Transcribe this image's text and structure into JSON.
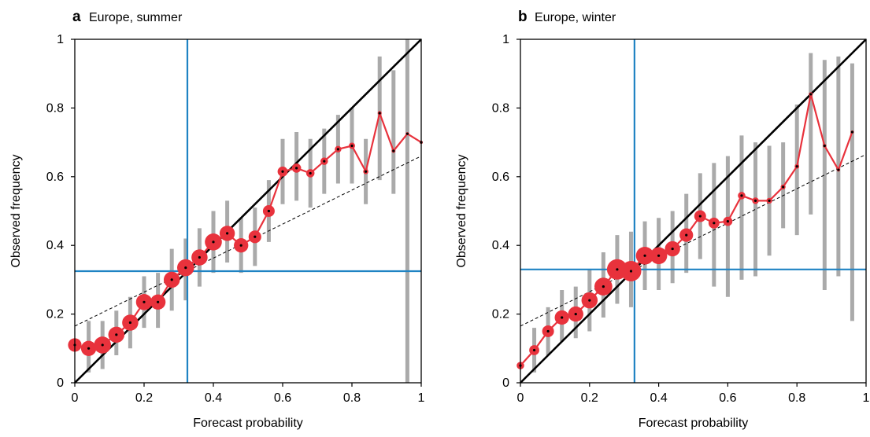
{
  "colors": {
    "reliability": "#e8323c",
    "dot": "#000000",
    "whisker": "#aaaaaa",
    "climatology": "#1f83c3",
    "diagonal": "#000000",
    "regression": "#000000"
  },
  "chart_data": [
    {
      "type": "scatter",
      "panel_letter": "a",
      "title": "Europe, summer",
      "xlabel": "Forecast probability",
      "ylabel": "Observed frequency",
      "xlim": [
        0,
        1
      ],
      "ylim": [
        0,
        1
      ],
      "xticks": [
        "0",
        "0.2",
        "0.4",
        "0.6",
        "0.8",
        "1"
      ],
      "yticks": [
        "0",
        "0.2",
        "0.4",
        "0.6",
        "0.8",
        "1"
      ],
      "climatology": 0.325,
      "regression_line": {
        "x": [
          0,
          1
        ],
        "y": [
          0.165,
          0.66
        ]
      },
      "points": [
        {
          "x": 0.0,
          "y": 0.11,
          "lo": null,
          "hi": null,
          "size": 0.6
        },
        {
          "x": 0.04,
          "y": 0.1,
          "lo": 0.03,
          "hi": 0.18,
          "size": 0.7
        },
        {
          "x": 0.08,
          "y": 0.11,
          "lo": 0.04,
          "hi": 0.18,
          "size": 0.8
        },
        {
          "x": 0.12,
          "y": 0.14,
          "lo": 0.08,
          "hi": 0.21,
          "size": 0.75
        },
        {
          "x": 0.16,
          "y": 0.175,
          "lo": 0.1,
          "hi": 0.25,
          "size": 0.75
        },
        {
          "x": 0.2,
          "y": 0.235,
          "lo": 0.16,
          "hi": 0.31,
          "size": 0.75
        },
        {
          "x": 0.24,
          "y": 0.235,
          "lo": 0.16,
          "hi": 0.32,
          "size": 0.7
        },
        {
          "x": 0.28,
          "y": 0.3,
          "lo": 0.21,
          "hi": 0.39,
          "size": 0.75
        },
        {
          "x": 0.32,
          "y": 0.335,
          "lo": 0.24,
          "hi": 0.42,
          "size": 0.8
        },
        {
          "x": 0.36,
          "y": 0.365,
          "lo": 0.28,
          "hi": 0.45,
          "size": 0.75
        },
        {
          "x": 0.4,
          "y": 0.41,
          "lo": 0.32,
          "hi": 0.5,
          "size": 0.8
        },
        {
          "x": 0.44,
          "y": 0.435,
          "lo": 0.35,
          "hi": 0.53,
          "size": 0.7
        },
        {
          "x": 0.48,
          "y": 0.4,
          "lo": 0.32,
          "hi": 0.48,
          "size": 0.65
        },
        {
          "x": 0.52,
          "y": 0.425,
          "lo": 0.34,
          "hi": 0.51,
          "size": 0.55
        },
        {
          "x": 0.56,
          "y": 0.5,
          "lo": 0.41,
          "hi": 0.59,
          "size": 0.5
        },
        {
          "x": 0.6,
          "y": 0.615,
          "lo": 0.52,
          "hi": 0.71,
          "size": 0.4
        },
        {
          "x": 0.64,
          "y": 0.625,
          "lo": 0.53,
          "hi": 0.73,
          "size": 0.35
        },
        {
          "x": 0.68,
          "y": 0.61,
          "lo": 0.51,
          "hi": 0.71,
          "size": 0.3
        },
        {
          "x": 0.72,
          "y": 0.645,
          "lo": 0.55,
          "hi": 0.74,
          "size": 0.25
        },
        {
          "x": 0.76,
          "y": 0.68,
          "lo": 0.58,
          "hi": 0.78,
          "size": 0.2
        },
        {
          "x": 0.8,
          "y": 0.69,
          "lo": 0.58,
          "hi": 0.8,
          "size": 0.18
        },
        {
          "x": 0.84,
          "y": 0.615,
          "lo": 0.52,
          "hi": 0.71,
          "size": 0.12
        },
        {
          "x": 0.88,
          "y": 0.785,
          "lo": 0.59,
          "hi": 0.95,
          "size": 0.05
        },
        {
          "x": 0.92,
          "y": 0.675,
          "lo": 0.55,
          "hi": 0.91,
          "size": 0.04
        },
        {
          "x": 0.96,
          "y": 0.725,
          "lo": 0.0,
          "hi": 1.0,
          "size": 0.0
        },
        {
          "x": 1.0,
          "y": 0.7,
          "lo": null,
          "hi": null,
          "size": 0.0
        }
      ]
    },
    {
      "type": "scatter",
      "panel_letter": "b",
      "title": "Europe, winter",
      "xlabel": "Forecast probability",
      "ylabel": "Observed frequency",
      "xlim": [
        0,
        1
      ],
      "ylim": [
        0,
        1
      ],
      "xticks": [
        "0",
        "0.2",
        "0.4",
        "0.6",
        "0.8",
        "1"
      ],
      "yticks": [
        "0",
        "0.2",
        "0.4",
        "0.6",
        "0.8",
        "1"
      ],
      "climatology": 0.33,
      "regression_line": {
        "x": [
          0,
          1
        ],
        "y": [
          0.165,
          0.665
        ]
      },
      "points": [
        {
          "x": 0.0,
          "y": 0.05,
          "lo": null,
          "hi": null,
          "size": 0.25
        },
        {
          "x": 0.04,
          "y": 0.095,
          "lo": 0.03,
          "hi": 0.16,
          "size": 0.4
        },
        {
          "x": 0.08,
          "y": 0.15,
          "lo": 0.08,
          "hi": 0.22,
          "size": 0.5
        },
        {
          "x": 0.12,
          "y": 0.19,
          "lo": 0.12,
          "hi": 0.27,
          "size": 0.65
        },
        {
          "x": 0.16,
          "y": 0.2,
          "lo": 0.13,
          "hi": 0.28,
          "size": 0.7
        },
        {
          "x": 0.2,
          "y": 0.24,
          "lo": 0.15,
          "hi": 0.33,
          "size": 0.75
        },
        {
          "x": 0.24,
          "y": 0.28,
          "lo": 0.19,
          "hi": 0.38,
          "size": 0.85
        },
        {
          "x": 0.28,
          "y": 0.33,
          "lo": 0.23,
          "hi": 0.43,
          "size": 1.0
        },
        {
          "x": 0.32,
          "y": 0.325,
          "lo": 0.22,
          "hi": 0.44,
          "size": 1.0
        },
        {
          "x": 0.36,
          "y": 0.37,
          "lo": 0.27,
          "hi": 0.47,
          "size": 0.85
        },
        {
          "x": 0.4,
          "y": 0.37,
          "lo": 0.27,
          "hi": 0.48,
          "size": 0.8
        },
        {
          "x": 0.44,
          "y": 0.39,
          "lo": 0.29,
          "hi": 0.5,
          "size": 0.7
        },
        {
          "x": 0.48,
          "y": 0.43,
          "lo": 0.32,
          "hi": 0.55,
          "size": 0.6
        },
        {
          "x": 0.52,
          "y": 0.485,
          "lo": 0.36,
          "hi": 0.61,
          "size": 0.5
        },
        {
          "x": 0.56,
          "y": 0.465,
          "lo": 0.28,
          "hi": 0.64,
          "size": 0.45
        },
        {
          "x": 0.6,
          "y": 0.47,
          "lo": 0.25,
          "hi": 0.66,
          "size": 0.35
        },
        {
          "x": 0.64,
          "y": 0.545,
          "lo": 0.3,
          "hi": 0.72,
          "size": 0.25
        },
        {
          "x": 0.68,
          "y": 0.53,
          "lo": 0.31,
          "hi": 0.7,
          "size": 0.2
        },
        {
          "x": 0.72,
          "y": 0.53,
          "lo": 0.37,
          "hi": 0.69,
          "size": 0.15
        },
        {
          "x": 0.76,
          "y": 0.57,
          "lo": 0.45,
          "hi": 0.7,
          "size": 0.1
        },
        {
          "x": 0.8,
          "y": 0.63,
          "lo": 0.43,
          "hi": 0.81,
          "size": 0.08
        },
        {
          "x": 0.84,
          "y": 0.84,
          "lo": 0.49,
          "hi": 0.96,
          "size": 0.05
        },
        {
          "x": 0.88,
          "y": 0.69,
          "lo": 0.27,
          "hi": 0.94,
          "size": 0.03
        },
        {
          "x": 0.92,
          "y": 0.62,
          "lo": 0.31,
          "hi": 0.95,
          "size": 0.02
        },
        {
          "x": 0.96,
          "y": 0.73,
          "lo": 0.18,
          "hi": 0.93,
          "size": 0.0
        },
        {
          "x": 1.0,
          "y": null,
          "lo": null,
          "hi": null,
          "size": 0.0
        }
      ]
    }
  ]
}
